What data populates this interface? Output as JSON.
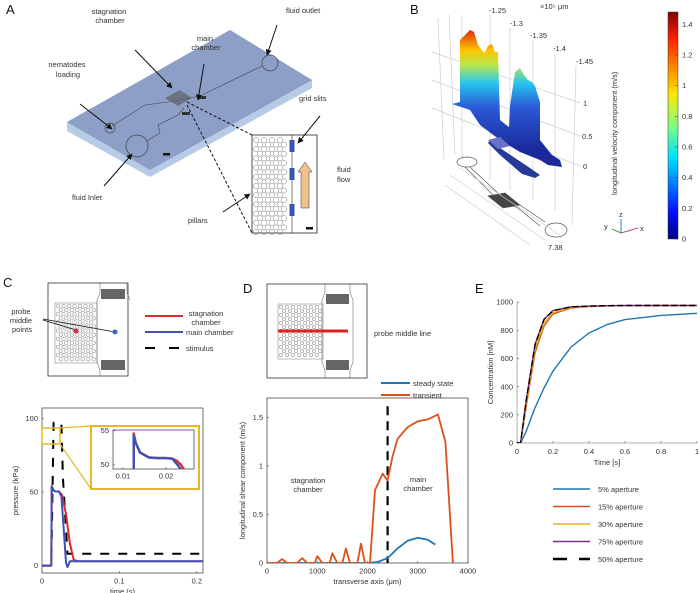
{
  "panels": {
    "A": {
      "label": "A",
      "annotations": {
        "stagnation_chamber": [
          "stagnation",
          "chamber"
        ],
        "main_chamber": [
          "main",
          "chamber"
        ],
        "fluid_outlet": "fluid outlet",
        "nematodes_loading": [
          "nematodes",
          "loading"
        ],
        "grid_slits": "grid slits",
        "fluid_flow": [
          "fluid",
          "flow"
        ],
        "fluid_inlet": "fluid Inlet",
        "pillars": "pillars"
      },
      "colors": {
        "chip_top": "#8d9fc6",
        "chip_side": "#b7cae6",
        "slits": "#3b57a8",
        "flow_arrow": "#f2c08f"
      }
    },
    "B": {
      "label": "B",
      "axis_scale": "×10⁵ μm",
      "y_ticks": [
        "-1.25",
        "-1.3",
        "-1.35",
        "-1.4",
        "-1.45"
      ],
      "z_ticks": [
        "1",
        "0.5",
        "0"
      ],
      "x_tick": "7.38",
      "zlabel": "longitudinal velocity component (m/s)",
      "colorbar": {
        "ticks": [
          0,
          0.2,
          0.4,
          0.6,
          0.8,
          1,
          1.2,
          1.4
        ],
        "tick_labels": [
          "0",
          "0.2",
          "0.4",
          "0.6",
          "0.8",
          "1",
          "1.2",
          "1.4"
        ],
        "range": [
          0,
          1.48
        ],
        "colormap": "jet"
      },
      "axes_triad": {
        "x": "x",
        "y": "y",
        "z": "z"
      }
    },
    "C": {
      "label": "C",
      "schematic_label": [
        "probe",
        "middle",
        "points"
      ],
      "legend": [
        "stagnation chamber",
        "main chamber",
        "stimulus"
      ],
      "legend_lines": [
        [
          "stagnation",
          "chamber"
        ],
        [
          "main chamber"
        ],
        [
          "stimulus"
        ]
      ]
    },
    "D": {
      "label": "D",
      "schematic_label": "probe middle line",
      "legend": [
        "steady state",
        "transient"
      ],
      "annotations": {
        "stagnation": [
          "stagnation",
          "chamber"
        ],
        "main": [
          "main",
          "chamber"
        ]
      }
    },
    "E": {
      "label": "E",
      "legend": [
        "5% aperture",
        "15% aperture",
        "30% aperture",
        "75% aperture",
        "50% aperture"
      ]
    }
  },
  "chart_data": [
    {
      "id": "C-main",
      "type": "line",
      "xlabel": "time (s)",
      "ylabel": "pressure  (kPa)",
      "xlim": [
        0,
        0.208
      ],
      "ylim": [
        -5,
        107
      ],
      "xticks": [
        0,
        0.1,
        0.2
      ],
      "xtick_labels": [
        "0",
        "0.1",
        "0.2"
      ],
      "yticks": [
        0,
        50,
        100
      ],
      "ytick_labels": [
        "0",
        "50",
        "100"
      ],
      "series": [
        {
          "name": "stimulus",
          "color": "#000000",
          "dash": true,
          "x": [
            0,
            0.012,
            0.015,
            0.025,
            0.027,
            0.033,
            0.208
          ],
          "y": [
            0,
            0,
            97,
            97,
            60,
            8,
            8
          ]
        },
        {
          "name": "stagnation chamber",
          "color": "#d92b2b",
          "x": [
            0,
            0.012,
            0.0125,
            0.015,
            0.018,
            0.022,
            0.026,
            0.031,
            0.036,
            0.041,
            0.045,
            0.208
          ],
          "y": [
            0,
            0,
            54,
            51,
            50.3,
            50.3,
            48,
            35,
            15,
            4,
            3,
            3
          ]
        },
        {
          "name": "main chamber",
          "color": "#3f51b5",
          "x": [
            0,
            0.012,
            0.0125,
            0.015,
            0.018,
            0.022,
            0.025,
            0.028,
            0.031,
            0.033,
            0.036,
            0.208
          ],
          "y": [
            0,
            0,
            54,
            51,
            50.3,
            50.3,
            47,
            25,
            2,
            -1,
            3,
            3
          ]
        }
      ]
    },
    {
      "id": "C-inset",
      "type": "line",
      "xlim": [
        0.0077,
        0.0265
      ],
      "ylim": [
        49.4,
        55.1
      ],
      "xticks": [
        0.01,
        0.02
      ],
      "xtick_labels": [
        "0.01",
        "0.02"
      ],
      "yticks": [
        50,
        55
      ],
      "ytick_labels": [
        "50",
        "55"
      ],
      "series": [
        {
          "name": "stagnation chamber",
          "color": "#d92b2b",
          "x": [
            0.0125,
            0.0125,
            0.013,
            0.014,
            0.016,
            0.018,
            0.02,
            0.0215,
            0.0225,
            0.0235,
            0.0245
          ],
          "y": [
            49,
            54.6,
            53.2,
            51.8,
            51.1,
            51.0,
            51.0,
            50.9,
            50.6,
            50.0,
            49
          ]
        },
        {
          "name": "main chamber",
          "color": "#3f51b5",
          "x": [
            0.0125,
            0.0125,
            0.013,
            0.014,
            0.016,
            0.018,
            0.02,
            0.0215,
            0.022,
            0.0228,
            0.0238
          ],
          "y": [
            49,
            54.3,
            53.2,
            51.8,
            51.1,
            51.0,
            51.0,
            50.9,
            50.5,
            49.9,
            49
          ]
        }
      ]
    },
    {
      "id": "D",
      "type": "line",
      "xlabel": "transverse axis (μm)",
      "ylabel": "longitudinal shear component (m/s)",
      "xlim": [
        0,
        4000
      ],
      "ylim": [
        0,
        1.7
      ],
      "xticks": [
        0,
        1000,
        2000,
        3000,
        4000
      ],
      "xtick_labels": [
        "0",
        "1000",
        "2000",
        "3000",
        "4000"
      ],
      "yticks": [
        0,
        0.5,
        1,
        1.5
      ],
      "ytick_labels": [
        "0",
        "0.5",
        "1",
        "1.5"
      ],
      "vline": {
        "x": 2400,
        "color": "#000000",
        "dash": true
      },
      "series": [
        {
          "name": "steady state",
          "color": "#1f77b4",
          "x": [
            0,
            2000,
            2200,
            2400,
            2600,
            2800,
            3000,
            3200,
            3350
          ],
          "y": [
            0,
            0,
            0.01,
            0.05,
            0.15,
            0.23,
            0.26,
            0.24,
            0.19
          ]
        },
        {
          "name": "transient",
          "color": "#d95319",
          "x": [
            0,
            200,
            300,
            400,
            600,
            700,
            800,
            950,
            1000,
            1100,
            1250,
            1300,
            1400,
            1500,
            1570,
            1650,
            1800,
            1870,
            1950,
            2050,
            2150,
            2300,
            2400,
            2500,
            2600,
            2800,
            3000,
            3200,
            3400,
            3550,
            3700
          ],
          "y": [
            0,
            0,
            0.04,
            0,
            0,
            0.05,
            0,
            0,
            0.07,
            0,
            0,
            0.1,
            0,
            0,
            0.15,
            0,
            0,
            0.2,
            0,
            0,
            0.75,
            0.92,
            0.85,
            1.1,
            1.28,
            1.4,
            1.46,
            1.48,
            1.53,
            1.25,
            0
          ]
        }
      ]
    },
    {
      "id": "E",
      "type": "line",
      "xlabel": "Time [s]",
      "ylabel": "Concentration  [nM]",
      "xlim": [
        0,
        1
      ],
      "ylim": [
        0,
        1000
      ],
      "xticks": [
        0,
        0.2,
        0.4,
        0.6,
        0.8,
        1
      ],
      "xtick_labels": [
        "0",
        "0.2",
        "0.4",
        "0.6",
        "0.8",
        "1"
      ],
      "yticks": [
        0,
        200,
        400,
        600,
        800,
        1000
      ],
      "ytick_labels": [
        "0",
        "200",
        "400",
        "600",
        "800",
        "1000"
      ],
      "series": [
        {
          "name": "5% aperture",
          "color": "#1f77b4",
          "x": [
            0,
            0.02,
            0.05,
            0.1,
            0.15,
            0.2,
            0.3,
            0.4,
            0.5,
            0.6,
            0.8,
            1
          ],
          "y": [
            0,
            0,
            80,
            250,
            390,
            510,
            680,
            780,
            840,
            875,
            905,
            920
          ]
        },
        {
          "name": "15% aperture",
          "color": "#d95319",
          "x": [
            0,
            0.02,
            0.05,
            0.1,
            0.15,
            0.2,
            0.3,
            0.4,
            0.5,
            0.6,
            0.8,
            1
          ],
          "y": [
            0,
            0,
            250,
            640,
            830,
            915,
            958,
            968,
            972,
            973,
            975,
            975
          ]
        },
        {
          "name": "30% aperture",
          "color": "#edb120",
          "x": [
            0,
            0.02,
            0.05,
            0.1,
            0.15,
            0.2,
            0.3,
            0.4,
            0.5,
            0.6,
            0.8,
            1
          ],
          "y": [
            0,
            0,
            265,
            665,
            850,
            925,
            962,
            970,
            973,
            974,
            975,
            975
          ]
        },
        {
          "name": "75% aperture",
          "color": "#7e2f8e",
          "x": [
            0,
            0.02,
            0.05,
            0.1,
            0.15,
            0.2,
            0.3,
            0.4,
            0.5,
            0.6,
            0.8,
            1
          ],
          "y": [
            0,
            0,
            295,
            700,
            878,
            940,
            966,
            971,
            974,
            975,
            975,
            975
          ]
        },
        {
          "name": "50% aperture",
          "color": "#000000",
          "dash": true,
          "x": [
            0,
            0.02,
            0.05,
            0.1,
            0.15,
            0.2,
            0.3,
            0.4,
            0.5,
            0.6,
            0.8,
            1
          ],
          "y": [
            0,
            0,
            290,
            695,
            875,
            938,
            965,
            971,
            974,
            975,
            975,
            975
          ]
        }
      ]
    }
  ]
}
